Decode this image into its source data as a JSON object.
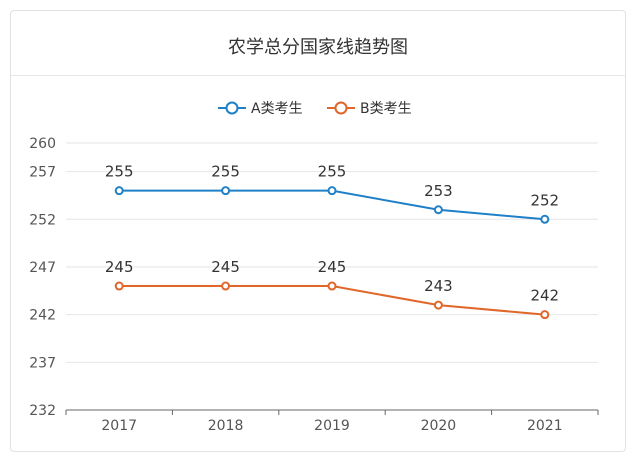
{
  "chart_data": {
    "type": "line",
    "title": "农学总分国家线趋势图",
    "categories": [
      "2017",
      "2018",
      "2019",
      "2020",
      "2021"
    ],
    "series": [
      {
        "name": "A类考生",
        "values": [
          255,
          255,
          255,
          253,
          252
        ],
        "color": "#1f80c8"
      },
      {
        "name": "B类考生",
        "values": [
          245,
          245,
          245,
          243,
          242
        ],
        "color": "#e0662a"
      }
    ],
    "yticks": [
      260,
      257,
      252,
      247,
      242,
      237,
      232
    ],
    "ylim": [
      232,
      260
    ],
    "grid": true,
    "legend": "top-center"
  }
}
